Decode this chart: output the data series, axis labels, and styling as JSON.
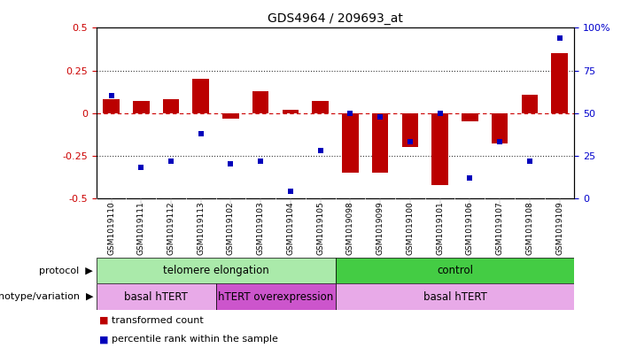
{
  "title": "GDS4964 / 209693_at",
  "samples": [
    "GSM1019110",
    "GSM1019111",
    "GSM1019112",
    "GSM1019113",
    "GSM1019102",
    "GSM1019103",
    "GSM1019104",
    "GSM1019105",
    "GSM1019098",
    "GSM1019099",
    "GSM1019100",
    "GSM1019101",
    "GSM1019106",
    "GSM1019107",
    "GSM1019108",
    "GSM1019109"
  ],
  "bar_values": [
    0.08,
    0.07,
    0.08,
    0.2,
    -0.03,
    0.13,
    0.02,
    0.07,
    -0.35,
    -0.35,
    -0.2,
    -0.42,
    -0.05,
    -0.18,
    0.11,
    0.35
  ],
  "dot_percentile": [
    60,
    18,
    22,
    38,
    20,
    22,
    4,
    28,
    50,
    48,
    33,
    50,
    12,
    33,
    22,
    94
  ],
  "ylim": [
    -0.5,
    0.5
  ],
  "yticks_left": [
    -0.5,
    -0.25,
    0,
    0.25,
    0.5
  ],
  "ytick_labels_left": [
    "-0.5",
    "-0.25",
    "0",
    "0.25",
    "0.5"
  ],
  "ytick_labels_right": [
    "0",
    "25",
    "50",
    "75",
    "100%"
  ],
  "bar_color": "#bb0000",
  "dot_color": "#0000bb",
  "zero_line_color": "#cc0000",
  "dotted_line_color": "#333333",
  "protocol_groups": [
    {
      "label": "telomere elongation",
      "start": 0,
      "end": 8,
      "color": "#aaeaaa"
    },
    {
      "label": "control",
      "start": 8,
      "end": 16,
      "color": "#44cc44"
    }
  ],
  "genotype_groups": [
    {
      "label": "basal hTERT",
      "start": 0,
      "end": 4,
      "color": "#e8aae8"
    },
    {
      "label": "hTERT overexpression",
      "start": 4,
      "end": 8,
      "color": "#cc55cc"
    },
    {
      "label": "basal hTERT",
      "start": 8,
      "end": 16,
      "color": "#e8aae8"
    }
  ],
  "background_color": "#ffffff",
  "tick_label_color_left": "#cc0000",
  "tick_label_color_right": "#0000cc",
  "xtick_bg_color": "#cccccc"
}
